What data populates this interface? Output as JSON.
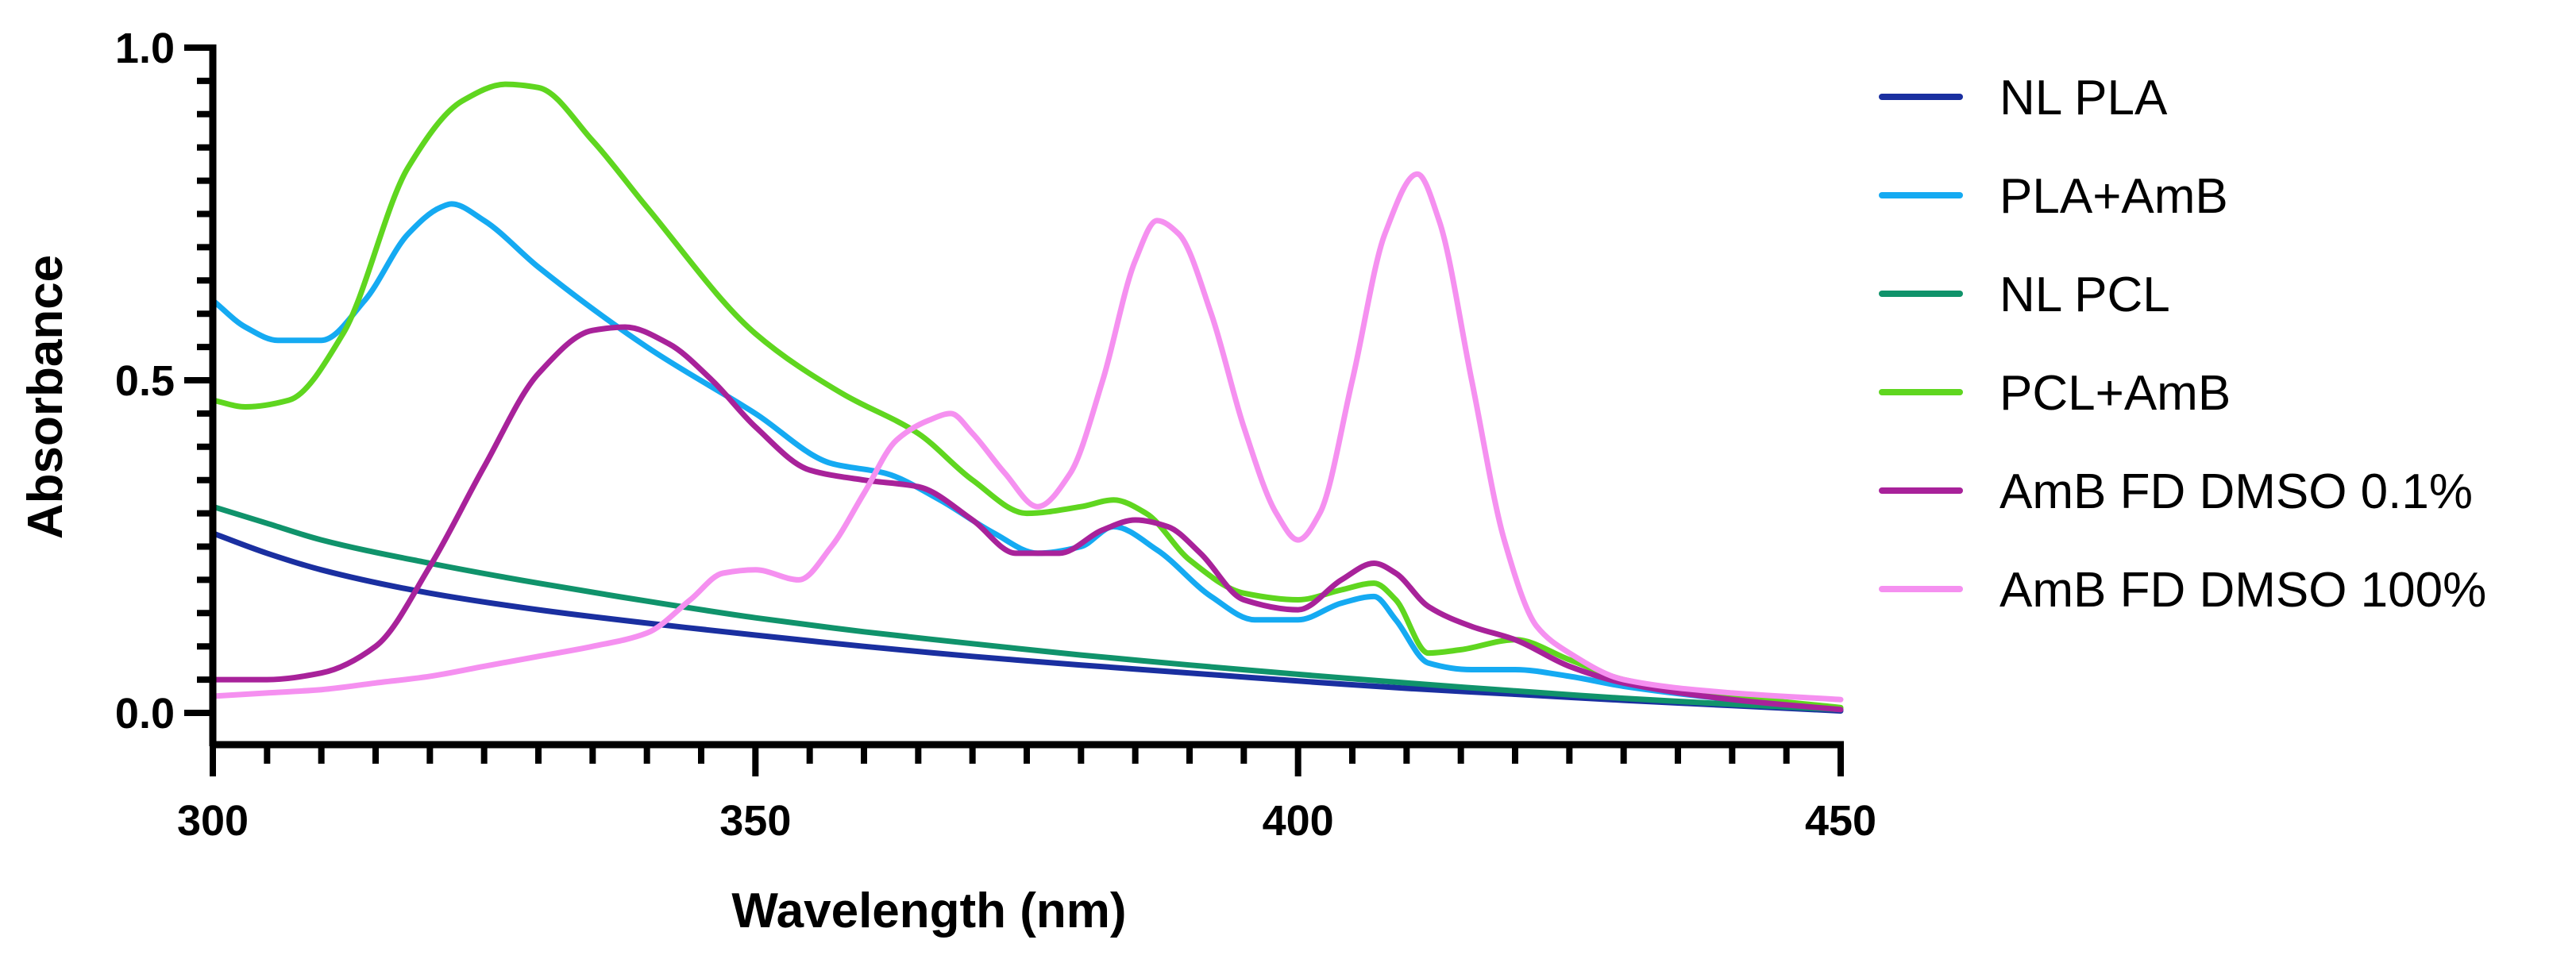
{
  "chart_data": {
    "type": "line",
    "title": "",
    "xlabel": "Wavelength (nm)",
    "ylabel": "Absorbance",
    "xlim": [
      300,
      450
    ],
    "ylim": [
      0.0,
      1.0
    ],
    "xticks": [
      300,
      350,
      400,
      450
    ],
    "xtick_labels": [
      "300",
      "350",
      "400",
      "450"
    ],
    "yticks": [
      0.0,
      0.5,
      1.0
    ],
    "ytick_labels": [
      "0.0",
      "0.5",
      "1.0"
    ],
    "grid": false,
    "legend_position": "right",
    "series": [
      {
        "name": "NL PLA",
        "color": "#1a2fa0",
        "x": [
          300,
          305,
          310,
          320,
          330,
          340,
          350,
          360,
          370,
          380,
          390,
          400,
          410,
          420,
          430,
          440,
          450
        ],
        "y": [
          0.27,
          0.24,
          0.215,
          0.18,
          0.155,
          0.135,
          0.117,
          0.1,
          0.085,
          0.072,
          0.06,
          0.048,
          0.037,
          0.028,
          0.019,
          0.011,
          0.003
        ]
      },
      {
        "name": "PLA+AmB",
        "color": "#15aaf2",
        "x": [
          300,
          303,
          306,
          310,
          314,
          318,
          321,
          322,
          325,
          330,
          340,
          350,
          357,
          362,
          367,
          372,
          376,
          380,
          383,
          387,
          392,
          396,
          400,
          404,
          407,
          409,
          412,
          416,
          420,
          425,
          430,
          440,
          450
        ],
        "y": [
          0.62,
          0.58,
          0.56,
          0.56,
          0.62,
          0.72,
          0.76,
          0.765,
          0.74,
          0.67,
          0.55,
          0.45,
          0.375,
          0.36,
          0.32,
          0.27,
          0.24,
          0.25,
          0.28,
          0.245,
          0.175,
          0.14,
          0.14,
          0.165,
          0.175,
          0.14,
          0.075,
          0.065,
          0.065,
          0.055,
          0.04,
          0.02,
          0.005
        ]
      },
      {
        "name": "NL PCL",
        "color": "#10936b",
        "x": [
          300,
          305,
          310,
          320,
          330,
          340,
          350,
          360,
          370,
          380,
          390,
          400,
          410,
          420,
          430,
          440,
          450
        ],
        "y": [
          0.31,
          0.285,
          0.26,
          0.225,
          0.195,
          0.168,
          0.143,
          0.122,
          0.104,
          0.087,
          0.072,
          0.058,
          0.045,
          0.033,
          0.022,
          0.013,
          0.005
        ]
      },
      {
        "name": "PCL+AmB",
        "color": "#5fd61f",
        "x": [
          300,
          303,
          307,
          312,
          318,
          323,
          327,
          330,
          335,
          340,
          350,
          358,
          365,
          370,
          375,
          380,
          383,
          386,
          390,
          395,
          400,
          404,
          407,
          409,
          412,
          415,
          420,
          425,
          430,
          440,
          450
        ],
        "y": [
          0.47,
          0.46,
          0.47,
          0.57,
          0.82,
          0.92,
          0.945,
          0.94,
          0.86,
          0.76,
          0.57,
          0.48,
          0.42,
          0.35,
          0.3,
          0.31,
          0.32,
          0.3,
          0.23,
          0.18,
          0.17,
          0.185,
          0.195,
          0.17,
          0.09,
          0.095,
          0.11,
          0.08,
          0.05,
          0.025,
          0.008
        ]
      },
      {
        "name": "AmB FD DMSO 0.1%",
        "color": "#a8229a",
        "x": [
          300,
          305,
          310,
          315,
          320,
          325,
          330,
          335,
          338,
          342,
          346,
          350,
          355,
          360,
          365,
          370,
          374,
          378,
          382,
          385,
          388,
          391,
          395,
          400,
          404,
          407,
          409,
          412,
          416,
          420,
          425,
          430,
          440,
          450
        ],
        "y": [
          0.05,
          0.05,
          0.06,
          0.1,
          0.22,
          0.37,
          0.51,
          0.575,
          0.58,
          0.555,
          0.5,
          0.43,
          0.365,
          0.35,
          0.34,
          0.29,
          0.24,
          0.24,
          0.275,
          0.29,
          0.28,
          0.24,
          0.17,
          0.155,
          0.2,
          0.225,
          0.21,
          0.16,
          0.13,
          0.11,
          0.07,
          0.045,
          0.02,
          0.005
        ]
      },
      {
        "name": "AmB FD DMSO 100%",
        "color": "#f590f0",
        "x": [
          300,
          305,
          310,
          315,
          320,
          325,
          330,
          335,
          340,
          344,
          347,
          350,
          354,
          357,
          360,
          363,
          366,
          368,
          370,
          373,
          376,
          379,
          382,
          385,
          387,
          389,
          392,
          395,
          398,
          400,
          402,
          405,
          408,
          411,
          413,
          416,
          419,
          422,
          425,
          430,
          440,
          450
        ],
        "y": [
          0.025,
          0.03,
          0.035,
          0.045,
          0.055,
          0.07,
          0.085,
          0.1,
          0.12,
          0.17,
          0.21,
          0.215,
          0.2,
          0.25,
          0.33,
          0.41,
          0.44,
          0.45,
          0.42,
          0.36,
          0.31,
          0.36,
          0.5,
          0.68,
          0.74,
          0.72,
          0.6,
          0.43,
          0.3,
          0.26,
          0.3,
          0.5,
          0.72,
          0.81,
          0.74,
          0.5,
          0.26,
          0.13,
          0.09,
          0.05,
          0.03,
          0.02
        ]
      }
    ]
  }
}
